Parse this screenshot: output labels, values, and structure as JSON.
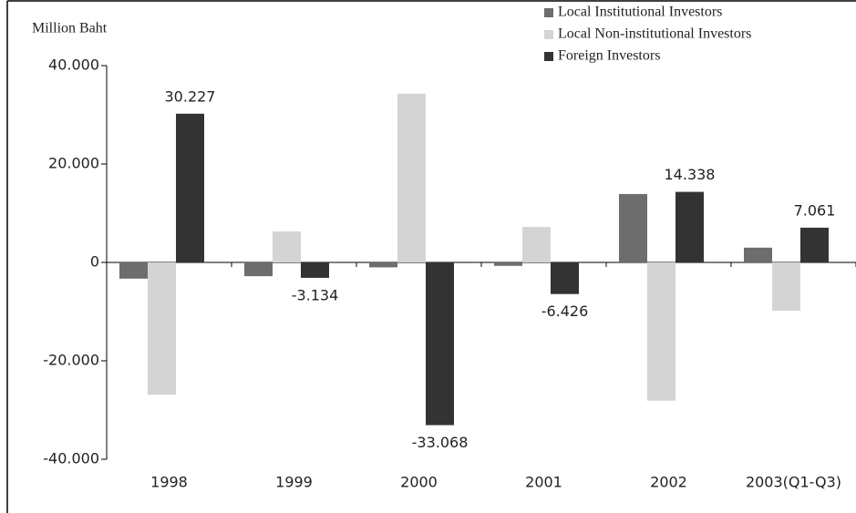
{
  "chart_data": {
    "type": "bar",
    "y_label": "Million Baht",
    "categories": [
      "1998",
      "1999",
      "2000",
      "2001",
      "2002",
      "2003(Q1-Q3)"
    ],
    "series": [
      {
        "name": "Local Institutional Investors",
        "color": "#6d6d6d",
        "values": [
          -3300,
          -2800,
          -1000,
          -700,
          13900,
          3000
        ]
      },
      {
        "name": "Local Non-institutional Investors",
        "color": "#d4d4d4",
        "values": [
          -26900,
          6300,
          34300,
          7200,
          -28100,
          -9800
        ]
      },
      {
        "name": "Foreign Investors",
        "color": "#333333",
        "values": [
          30227,
          -3134,
          -33068,
          -6426,
          14338,
          7061
        ],
        "value_labels": [
          "30.227",
          "-3.134",
          "-33.068",
          "-6.426",
          "14.338",
          "7.061"
        ]
      }
    ],
    "ylim": [
      -40000,
      40000
    ],
    "yticks": [
      {
        "value": -40000,
        "label": "-40.000"
      },
      {
        "value": -20000,
        "label": "-20.000"
      },
      0,
      {
        "value": 20000,
        "label": "20.000"
      },
      {
        "value": 40000,
        "label": "40.000"
      }
    ],
    "legend": "top-right"
  }
}
